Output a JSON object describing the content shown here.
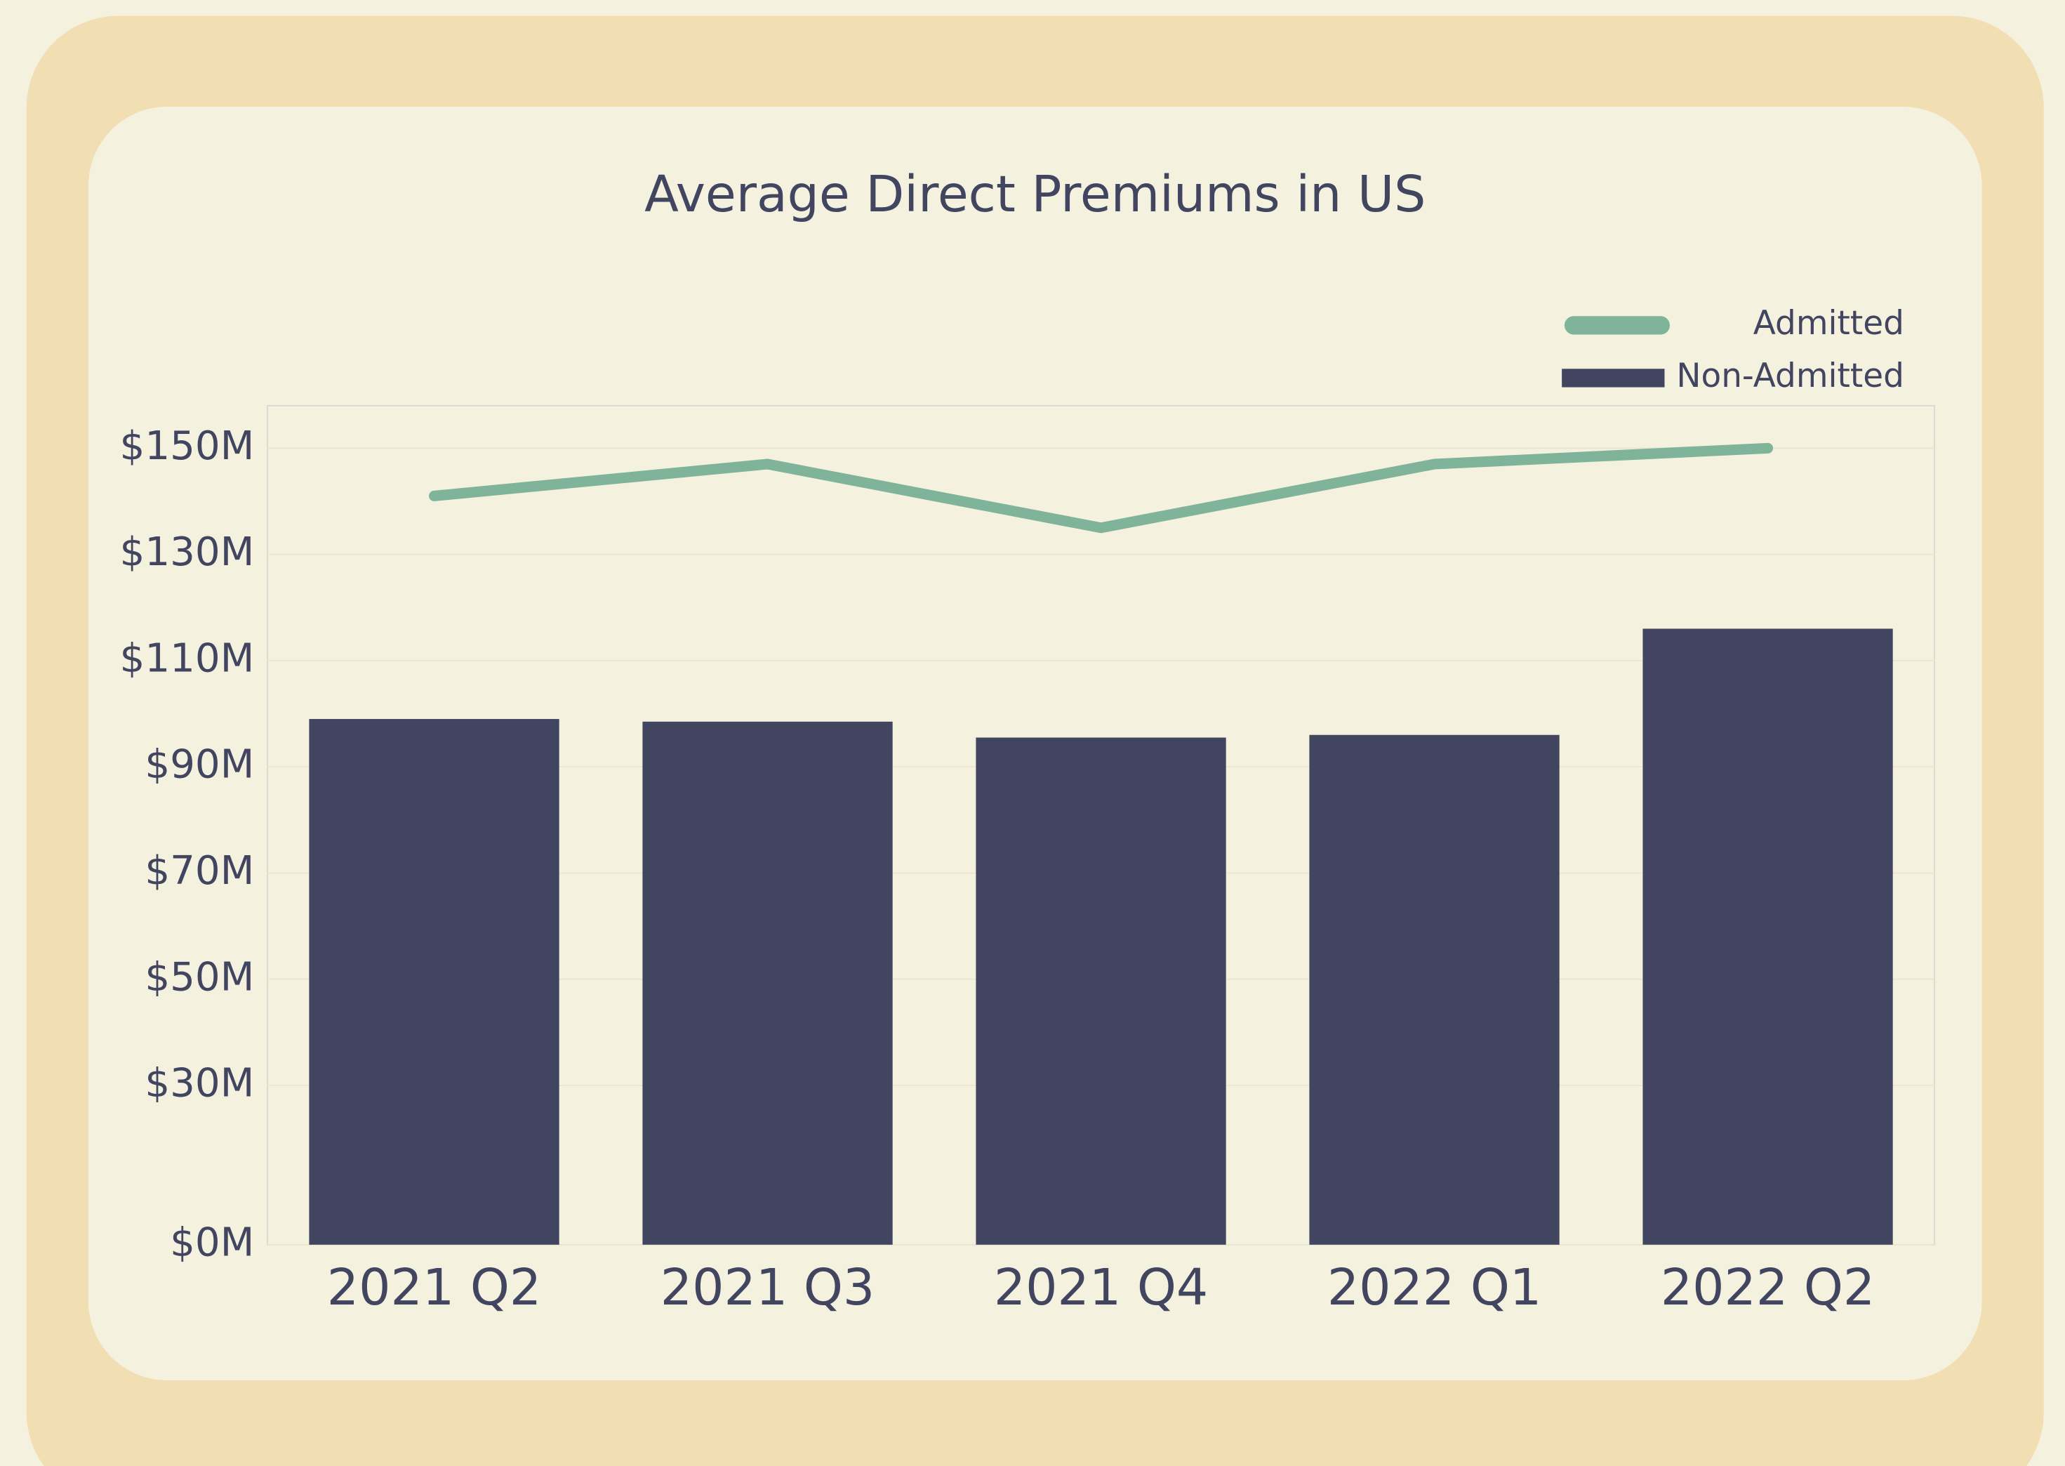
{
  "chart_data": {
    "type": "bar",
    "title": "Average Direct Premiums in US",
    "categories": [
      "2021 Q2",
      "2021 Q3",
      "2021 Q4",
      "2022 Q1",
      "2022 Q2"
    ],
    "series": [
      {
        "name": "Admitted",
        "type": "line",
        "color": "#7fb39a",
        "values": [
          141,
          147,
          135,
          147,
          150
        ]
      },
      {
        "name": "Non-Admitted",
        "type": "bar",
        "color": "#414560",
        "values": [
          99,
          98.5,
          95.5,
          96,
          116
        ]
      }
    ],
    "ylim": [
      0,
      158
    ],
    "yticks": [
      {
        "value": 0,
        "label": "$0M"
      },
      {
        "value": 30,
        "label": "$30M"
      },
      {
        "value": 50,
        "label": "$50M"
      },
      {
        "value": 70,
        "label": "$70M"
      },
      {
        "value": 90,
        "label": "$90M"
      },
      {
        "value": 110,
        "label": "$110M"
      },
      {
        "value": 130,
        "label": "$130M"
      },
      {
        "value": 150,
        "label": "$150M"
      }
    ],
    "grid": true,
    "legend": "upper right"
  }
}
